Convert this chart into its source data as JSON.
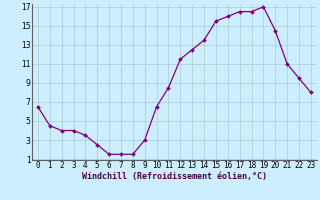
{
  "x": [
    0,
    1,
    2,
    3,
    4,
    5,
    6,
    7,
    8,
    9,
    10,
    11,
    12,
    13,
    14,
    15,
    16,
    17,
    18,
    19,
    20,
    21,
    22,
    23
  ],
  "y": [
    6.5,
    4.5,
    4.0,
    4.0,
    3.5,
    2.5,
    1.5,
    1.5,
    1.5,
    3.0,
    6.5,
    8.5,
    11.5,
    12.5,
    13.5,
    15.5,
    16.0,
    16.5,
    16.5,
    17.0,
    14.5,
    11.0,
    9.5,
    8.0
  ],
  "line_color": "#800080",
  "marker": "D",
  "marker_size": 2.0,
  "line_width": 0.9,
  "bg_color": "#cceeff",
  "grid_color": "#aacccc",
  "xlabel": "Windchill (Refroidissement éolien,°C)",
  "xlabel_fontsize": 6.0,
  "tick_fontsize": 5.5,
  "ylim": [
    1,
    17
  ],
  "xlim": [
    -0.5,
    23.5
  ],
  "yticks": [
    1,
    3,
    5,
    7,
    9,
    11,
    13,
    15,
    17
  ],
  "xtick_labels": [
    "0",
    "1",
    "2",
    "3",
    "4",
    "5",
    "6",
    "7",
    "8",
    "9",
    "10",
    "11",
    "12",
    "13",
    "14",
    "15",
    "16",
    "17",
    "18",
    "19",
    "20",
    "21",
    "22",
    "23"
  ],
  "spine_color": "#606060"
}
